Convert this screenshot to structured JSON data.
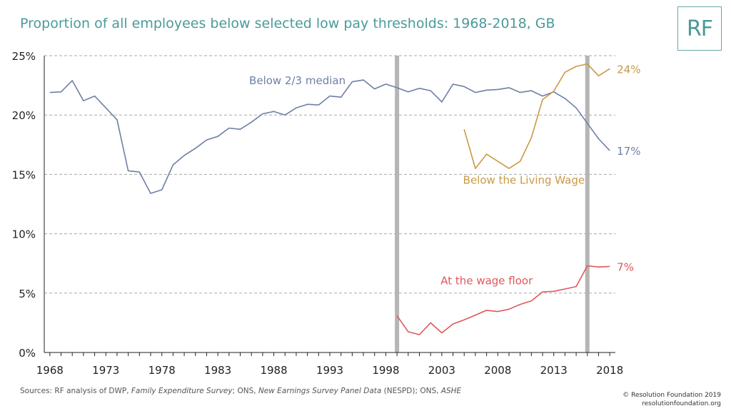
{
  "title": "Proportion of all employees below selected low pay thresholds: 1968-2018, GB",
  "logo": "RF",
  "sources": {
    "prefix": "Sources: RF analysis of DWP, ",
    "fes": "Family Expenditure Survey",
    "mid1": "; ONS, ",
    "nespd": "New Earnings Survey Panel Data",
    "mid2": " (NESPD); ONS, ",
    "ashe": "ASHE"
  },
  "copyright": {
    "line1": "© Resolution Foundation 2019",
    "line2": "resolutionfoundation.org"
  },
  "chart_data": {
    "type": "line",
    "title": "Proportion of all employees below selected low pay thresholds: 1968-2018, GB",
    "xlabel": "",
    "ylabel": "",
    "xlim": [
      1967.5,
      2018.5
    ],
    "ylim": [
      0,
      25
    ],
    "x_ticks": [
      1968,
      1973,
      1978,
      1983,
      1988,
      1993,
      1998,
      2003,
      2008,
      2013,
      2018
    ],
    "y_ticks": [
      0,
      5,
      10,
      15,
      20,
      25
    ],
    "y_tick_labels": [
      "0%",
      "5%",
      "10%",
      "15%",
      "20%",
      "25%"
    ],
    "grid": "horizontal dashed",
    "vertical_markers": [
      1999,
      2016
    ],
    "series": [
      {
        "name": "Below 2/3 median",
        "color": "#6e7fa6",
        "end_label": "17%",
        "x": [
          1968,
          1969,
          1970,
          1971,
          1972,
          1973,
          1974,
          1975,
          1976,
          1977,
          1978,
          1979,
          1980,
          1981,
          1982,
          1983,
          1984,
          1985,
          1986,
          1987,
          1988,
          1989,
          1990,
          1991,
          1992,
          1993,
          1994,
          1995,
          1996,
          1997,
          1998,
          1999,
          2000,
          2001,
          2002,
          2003,
          2004,
          2005,
          2006,
          2007,
          2008,
          2009,
          2010,
          2011,
          2012,
          2013,
          2014,
          2015,
          2016,
          2017,
          2018
        ],
        "values": [
          21.9,
          21.95,
          22.9,
          21.2,
          21.6,
          20.6,
          19.6,
          15.3,
          15.2,
          13.4,
          13.7,
          15.8,
          16.6,
          17.2,
          17.9,
          18.2,
          18.9,
          18.8,
          19.4,
          20.1,
          20.3,
          20.0,
          20.6,
          20.9,
          20.85,
          21.6,
          21.5,
          22.8,
          22.95,
          22.2,
          22.6,
          22.3,
          21.95,
          22.25,
          22.05,
          21.1,
          22.6,
          22.4,
          21.9,
          22.1,
          22.15,
          22.3,
          21.9,
          22.05,
          21.6,
          21.95,
          21.4,
          20.6,
          19.3,
          18.0,
          17.0
        ]
      },
      {
        "name": "Below the Living Wage",
        "color": "#c99a45",
        "end_label": "24%",
        "x": [
          2005,
          2006,
          2007,
          2008,
          2009,
          2010,
          2011,
          2012,
          2013,
          2014,
          2015,
          2016,
          2017,
          2018
        ],
        "values": [
          18.8,
          15.5,
          16.7,
          16.1,
          15.5,
          16.1,
          18.1,
          21.3,
          22.0,
          23.6,
          24.1,
          24.3,
          23.3,
          23.9
        ]
      },
      {
        "name": "At the wage floor",
        "color": "#e0575b",
        "end_label": "7%",
        "x": [
          1999,
          2000,
          2001,
          2002,
          2003,
          2004,
          2005,
          2006,
          2007,
          2008,
          2009,
          2010,
          2011,
          2012,
          2013,
          2014,
          2015,
          2016,
          2017,
          2018
        ],
        "values": [
          3.1,
          1.75,
          1.5,
          2.5,
          1.65,
          2.4,
          2.75,
          3.15,
          3.55,
          3.45,
          3.65,
          4.05,
          4.35,
          5.1,
          5.15,
          5.35,
          5.55,
          7.3,
          7.2,
          7.25
        ]
      }
    ]
  }
}
